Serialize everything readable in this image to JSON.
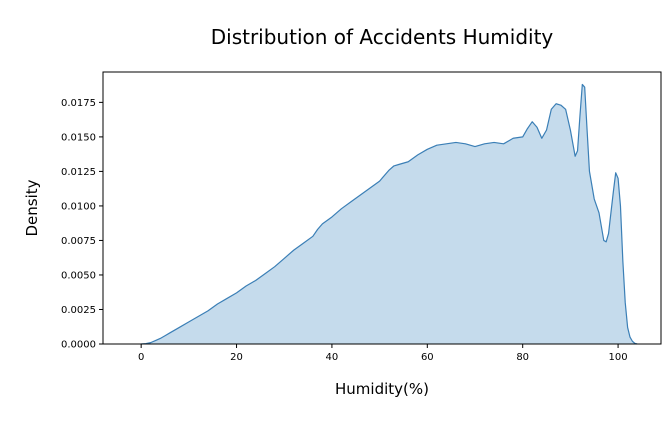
{
  "chart_data": {
    "type": "area",
    "title": "Distribution of Accidents Humidity",
    "xlabel": "Humidity(%)",
    "ylabel": "Density",
    "xlim": [
      -8,
      109
    ],
    "ylim": [
      0,
      0.0197
    ],
    "x_ticks": [
      0,
      20,
      40,
      60,
      80,
      100
    ],
    "x_tick_labels": [
      "0",
      "20",
      "40",
      "60",
      "80",
      "100"
    ],
    "y_ticks": [
      0,
      0.0025,
      0.005,
      0.0075,
      0.01,
      0.0125,
      0.015,
      0.0175
    ],
    "y_tick_labels": [
      "0.0000",
      "0.0025",
      "0.0050",
      "0.0075",
      "0.0100",
      "0.0125",
      "0.0150",
      "0.0175"
    ],
    "grid": false,
    "legend": "none",
    "fill_color": "#c5dbec",
    "line_color": "#3b7fb6",
    "series": [
      {
        "x": [
          0,
          1,
          2,
          3,
          4,
          5,
          6,
          8,
          10,
          12,
          14,
          16,
          18,
          20,
          22,
          24,
          26,
          28,
          30,
          32,
          34,
          36,
          37,
          38,
          40,
          42,
          44,
          46,
          48,
          50,
          52,
          53,
          54,
          56,
          58,
          60,
          62,
          64,
          66,
          68,
          70,
          72,
          74,
          76,
          78,
          80,
          81,
          82,
          83,
          84,
          85,
          86,
          87,
          88,
          89,
          90,
          91,
          91.5,
          92,
          92.5,
          93,
          93.5,
          94,
          95,
          96,
          97,
          97.5,
          98,
          99,
          99.5,
          100,
          100.5,
          101,
          101.5,
          102,
          102.5,
          103,
          103.5,
          104
        ],
        "y": [
          0,
          3e-05,
          0.0001,
          0.00025,
          0.0004,
          0.0006,
          0.0008,
          0.0012,
          0.0016,
          0.002,
          0.0024,
          0.0029,
          0.0033,
          0.0037,
          0.0042,
          0.0046,
          0.0051,
          0.0056,
          0.0062,
          0.0068,
          0.0073,
          0.0078,
          0.0083,
          0.0087,
          0.0092,
          0.0098,
          0.0103,
          0.0108,
          0.0113,
          0.0118,
          0.0126,
          0.0129,
          0.013,
          0.0132,
          0.0137,
          0.0141,
          0.0144,
          0.0145,
          0.0146,
          0.0145,
          0.0143,
          0.0145,
          0.0146,
          0.0145,
          0.0149,
          0.015,
          0.0156,
          0.0161,
          0.0157,
          0.0149,
          0.0155,
          0.017,
          0.0174,
          0.0173,
          0.017,
          0.0155,
          0.0136,
          0.014,
          0.0165,
          0.0188,
          0.0186,
          0.0155,
          0.0125,
          0.0105,
          0.0095,
          0.0075,
          0.0074,
          0.008,
          0.011,
          0.0124,
          0.012,
          0.01,
          0.006,
          0.003,
          0.0012,
          0.0005,
          0.0002,
          5e-05,
          0
        ]
      }
    ]
  }
}
